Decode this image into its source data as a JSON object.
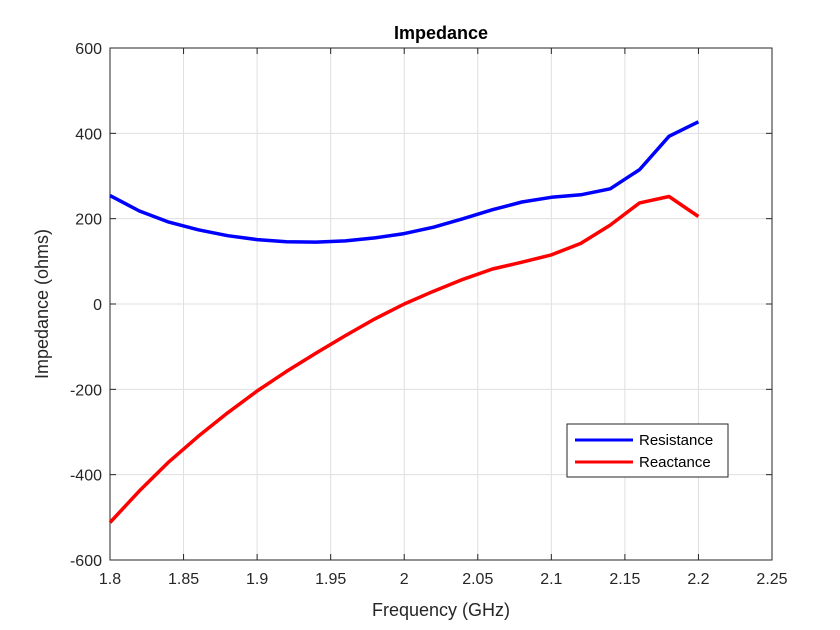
{
  "chart_data": {
    "type": "line",
    "title": "Impedance",
    "xlabel": "Frequency (GHz)",
    "ylabel": "Impedance (ohms)",
    "xlim": [
      1.8,
      2.25
    ],
    "ylim": [
      -600,
      600
    ],
    "xticks": [
      1.8,
      1.85,
      1.9,
      1.95,
      2.0,
      2.05,
      2.1,
      2.15,
      2.2,
      2.25
    ],
    "xtick_labels": [
      "1.8",
      "1.85",
      "1.9",
      "1.95",
      "2",
      "2.05",
      "2.1",
      "2.15",
      "2.2",
      "2.25"
    ],
    "yticks": [
      -600,
      -400,
      -200,
      0,
      200,
      400,
      600
    ],
    "ytick_labels": [
      "-600",
      "-400",
      "-200",
      "0",
      "200",
      "400",
      "600"
    ],
    "grid": true,
    "legend_position": "bottom-right",
    "x": [
      1.8,
      1.82,
      1.84,
      1.86,
      1.88,
      1.9,
      1.92,
      1.94,
      1.96,
      1.98,
      2.0,
      2.02,
      2.04,
      2.06,
      2.08,
      2.1,
      2.12,
      2.14,
      2.16,
      2.18,
      2.2
    ],
    "series": [
      {
        "name": "Resistance",
        "color": "#0000ff",
        "values": [
          254,
          218,
          192,
          174,
          160,
          151,
          146,
          145,
          148,
          155,
          165,
          180,
          200,
          221,
          239,
          250,
          256,
          270,
          315,
          393,
          427
        ]
      },
      {
        "name": "Reactance",
        "color": "#ff0000",
        "values": [
          -512,
          -438,
          -370,
          -310,
          -255,
          -204,
          -158,
          -115,
          -74,
          -35,
          0,
          30,
          58,
          82,
          98,
          115,
          142,
          185,
          237,
          252,
          205
        ]
      }
    ]
  }
}
